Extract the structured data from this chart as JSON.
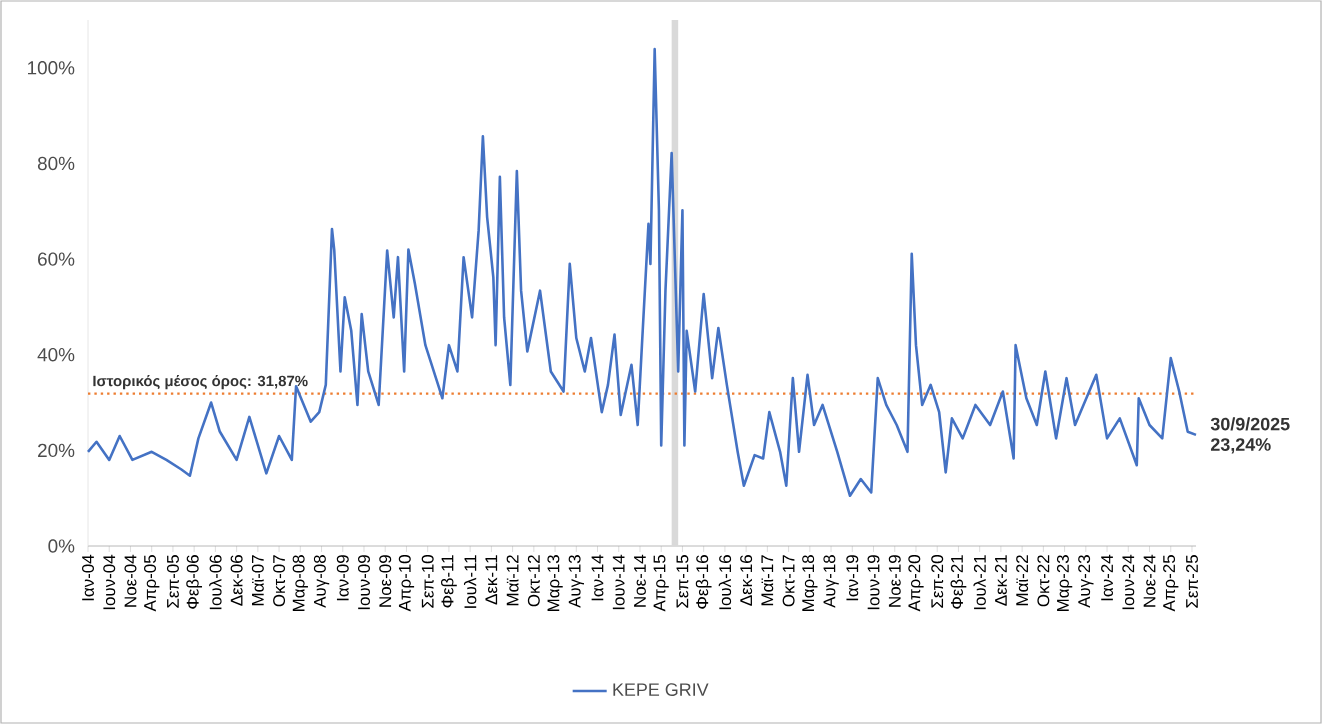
{
  "chart_data": {
    "type": "line",
    "x": [
      "2004-01",
      "2004-03",
      "2004-06",
      "2004-08-15",
      "2004-11-15",
      "2005-04",
      "2005-07-15",
      "2005-11",
      "2006-01",
      "2006-03",
      "2006-06",
      "2006-08",
      "2006-12",
      "2007-03",
      "2007-07",
      "2007-10",
      "2008-01",
      "2008-02",
      "2008-05-15",
      "2008-07-15",
      "2008-09",
      "2008-10-15",
      "2008-11",
      "2008-12-15",
      "2009-01-15",
      "2009-03",
      "2009-04-15",
      "2009-05-15",
      "2009-07",
      "2009-09-15",
      "2009-11-15",
      "2010-01",
      "2010-02",
      "2010-03-15",
      "2010-04-15",
      "2010-06",
      "2010-08-15",
      "2010-11-15",
      "2010-12-15",
      "2011-02",
      "2011-04",
      "2011-05-15",
      "2011-07-15",
      "2011-09",
      "2011-10",
      "2011-11",
      "2011-12-15",
      "2012-01",
      "2012-02",
      "2012-03",
      "2012-04-15",
      "2012-06",
      "2012-07",
      "2012-08-15",
      "2012-11-15",
      "2013-02",
      "2013-05",
      "2013-06-15",
      "2013-08",
      "2013-10",
      "2013-11-15",
      "2014-02",
      "2014-03-15",
      "2014-05",
      "2014-06-15",
      "2014-09",
      "2014-10-15",
      "2014-11-15",
      "2015-01",
      "2015-01-15",
      "2015-02-15",
      "2015-03-15",
      "2015-04",
      "2015-05",
      "2015-06-15",
      "2015-08",
      "2015-09",
      "2015-09-15",
      "2015-10",
      "2015-12",
      "2016-02",
      "2016-04",
      "2016-05-15",
      "2016-07-15",
      "2016-10",
      "2016-11-15",
      "2017-02",
      "2017-04",
      "2017-05-15",
      "2017-08",
      "2017-09-15",
      "2017-11",
      "2017-12-15",
      "2018-02-15",
      "2018-04",
      "2018-06",
      "2018-09-15",
      "2018-12-15",
      "2019-03",
      "2019-05-15",
      "2019-07",
      "2019-09",
      "2019-11-15",
      "2020-02",
      "2020-03",
      "2020-04",
      "2020-05-15",
      "2020-07-15",
      "2020-09-15",
      "2020-11",
      "2020-12-15",
      "2021-03",
      "2021-06",
      "2021-09-15",
      "2021-12-15",
      "2022-03",
      "2022-03-15",
      "2022-06",
      "2022-08-15",
      "2022-10-15",
      "2023-01",
      "2023-03-15",
      "2023-05-15",
      "2023-10-15",
      "2024-01",
      "2024-04",
      "2024-08",
      "2024-08-15",
      "2024-11",
      "2025-02",
      "2025-04",
      "2025-06",
      "2025-08",
      "2025-09-30"
    ],
    "series": [
      {
        "name": "KEPE GRIV",
        "color": "#4472c4",
        "values": [
          19.7,
          21.8,
          18,
          23,
          18,
          19.7,
          18,
          16,
          14.7,
          22.5,
          30,
          24,
          18,
          27,
          15.2,
          23,
          18,
          33.4,
          26,
          28,
          33.7,
          66.3,
          61.8,
          36.5,
          52,
          45,
          29.5,
          48.5,
          36.5,
          29.5,
          61.8,
          47.8,
          60.4,
          36.5,
          62,
          54.8,
          42,
          33.7,
          30.9,
          42,
          36.5,
          60.4,
          47.8,
          66,
          85.7,
          68.8,
          56.2,
          42,
          77.2,
          47.8,
          33.7,
          78.4,
          53.4,
          40.7,
          53.4,
          36.5,
          32.3,
          59,
          43.5,
          36.5,
          43.5,
          28,
          33.7,
          44.2,
          27.4,
          37.9,
          25.3,
          42,
          67.4,
          59,
          103.9,
          70.2,
          21,
          53.4,
          82.2,
          36.5,
          70.2,
          21,
          45,
          32.3,
          52.7,
          35.1,
          45.6,
          33.7,
          19.7,
          12.6,
          19,
          18.3,
          28,
          19.7,
          12.6,
          35.1,
          19.7,
          35.8,
          25.3,
          29.5,
          19.7,
          10.5,
          14,
          11.2,
          35.1,
          29.5,
          25.3,
          19.7,
          61.1,
          42,
          29.5,
          33.7,
          28,
          15.4,
          26.7,
          22.5,
          29.5,
          25.3,
          32.3,
          18.3,
          42,
          30.9,
          25.3,
          36.5,
          22.5,
          35.1,
          25.3,
          35.8,
          22.5,
          26.7,
          16.9,
          30.9,
          25.3,
          22.5,
          39.3,
          32.3,
          23.9,
          23.24
        ]
      }
    ],
    "xlim": [
      "2004-01-01",
      "2025-09-30"
    ],
    "ylim": [
      0,
      110
    ],
    "yticks": [
      {
        "value": 0,
        "label": "0%"
      },
      {
        "value": 20,
        "label": "20%"
      },
      {
        "value": 40,
        "label": "40%"
      },
      {
        "value": 60,
        "label": "60%"
      },
      {
        "value": 80,
        "label": "80%"
      },
      {
        "value": 100,
        "label": "100%"
      }
    ],
    "xticks": [
      {
        "value": "2004-01",
        "label": "Ιαν-04"
      },
      {
        "value": "2004-06",
        "label": "Ιουν-04"
      },
      {
        "value": "2004-11",
        "label": "Νοε-04"
      },
      {
        "value": "2005-04",
        "label": "Απρ-05"
      },
      {
        "value": "2005-09",
        "label": "Σεπ-05"
      },
      {
        "value": "2006-02",
        "label": "Φεβ-06"
      },
      {
        "value": "2006-07",
        "label": "Ιουλ-06"
      },
      {
        "value": "2006-12",
        "label": "Δεκ-06"
      },
      {
        "value": "2007-05",
        "label": "Μαϊ-07"
      },
      {
        "value": "2007-10",
        "label": "Οκτ-07"
      },
      {
        "value": "2008-03",
        "label": "Μαρ-08"
      },
      {
        "value": "2008-08",
        "label": "Αυγ-08"
      },
      {
        "value": "2009-01",
        "label": "Ιαν-09"
      },
      {
        "value": "2009-06",
        "label": "Ιουν-09"
      },
      {
        "value": "2009-11",
        "label": "Νοε-09"
      },
      {
        "value": "2010-04",
        "label": "Απρ-10"
      },
      {
        "value": "2010-09",
        "label": "Σεπ-10"
      },
      {
        "value": "2011-02",
        "label": "Φεβ-11"
      },
      {
        "value": "2011-07",
        "label": "Ιουλ-11"
      },
      {
        "value": "2011-12",
        "label": "Δεκ-11"
      },
      {
        "value": "2012-05",
        "label": "Μαϊ-12"
      },
      {
        "value": "2012-10",
        "label": "Οκτ-12"
      },
      {
        "value": "2013-03",
        "label": "Μαρ-13"
      },
      {
        "value": "2013-08",
        "label": "Αυγ-13"
      },
      {
        "value": "2014-01",
        "label": "Ιαν-14"
      },
      {
        "value": "2014-06",
        "label": "Ιουν-14"
      },
      {
        "value": "2014-11",
        "label": "Νοε-14"
      },
      {
        "value": "2015-04",
        "label": "Απρ-15"
      },
      {
        "value": "2015-09",
        "label": "Σεπ-15"
      },
      {
        "value": "2016-02",
        "label": "Φεβ-16"
      },
      {
        "value": "2016-07",
        "label": "Ιουλ-16"
      },
      {
        "value": "2016-12",
        "label": "Δεκ-16"
      },
      {
        "value": "2017-05",
        "label": "Μαϊ-17"
      },
      {
        "value": "2017-10",
        "label": "Οκτ-17"
      },
      {
        "value": "2018-03",
        "label": "Μαρ-18"
      },
      {
        "value": "2018-08",
        "label": "Αυγ-18"
      },
      {
        "value": "2019-01",
        "label": "Ιαν-19"
      },
      {
        "value": "2019-06",
        "label": "Ιουν-19"
      },
      {
        "value": "2019-11",
        "label": "Νοε-19"
      },
      {
        "value": "2020-04",
        "label": "Απρ-20"
      },
      {
        "value": "2020-09",
        "label": "Σεπ-20"
      },
      {
        "value": "2021-02",
        "label": "Φεβ-21"
      },
      {
        "value": "2021-07",
        "label": "Ιουλ-21"
      },
      {
        "value": "2021-12",
        "label": "Δεκ-21"
      },
      {
        "value": "2022-05",
        "label": "Μαϊ-22"
      },
      {
        "value": "2022-10",
        "label": "Οκτ-22"
      },
      {
        "value": "2023-03",
        "label": "Μαρ-23"
      },
      {
        "value": "2023-08",
        "label": "Αυγ-23"
      },
      {
        "value": "2024-01",
        "label": "Ιαν-24"
      },
      {
        "value": "2024-06",
        "label": "Ιουν-24"
      },
      {
        "value": "2024-11",
        "label": "Νοε-24"
      },
      {
        "value": "2025-04",
        "label": "Απρ-25"
      },
      {
        "value": "2025-09",
        "label": "Σεπ-25"
      }
    ],
    "ref_lines": [
      {
        "axis": "y",
        "value": 31.87,
        "label": "Ιστορικός μέσος όρος: 31,87%",
        "color": "#ed7d31",
        "line_style": "dotted"
      }
    ],
    "bands": [
      {
        "axis": "x",
        "from": "2015-06-15",
        "to": "2015-08-01",
        "color": "#d9d9d9"
      }
    ],
    "annotations": [
      {
        "text": "30/9/2025",
        "x": "2025-09-30",
        "y": 23.24
      },
      {
        "text": "23,24%",
        "x": "2025-09-30",
        "y": 23.24
      }
    ],
    "legend": "bottom",
    "line_style": "solid"
  }
}
